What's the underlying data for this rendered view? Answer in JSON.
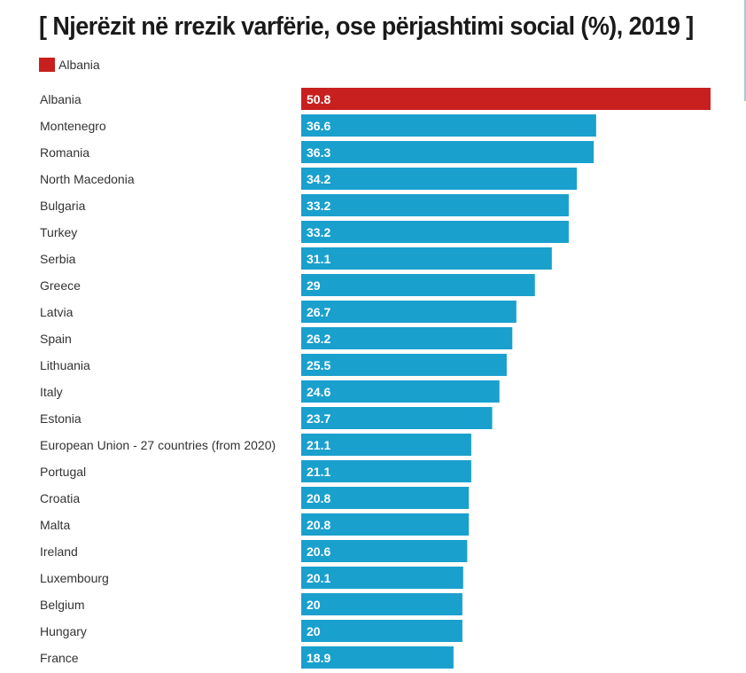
{
  "chart_data": {
    "type": "bar",
    "orientation": "horizontal",
    "title": "[ Njerëzit në rrezik varfërie, ose përjashtimi social (%), 2019 ]",
    "xlabel": "",
    "ylabel": "",
    "xlim": [
      0,
      50.8
    ],
    "grid": false,
    "legend": {
      "placement": "top-left",
      "entries": [
        {
          "label": "Albania",
          "color": "#c8201f"
        }
      ]
    },
    "highlight_color": "#c8201f",
    "default_color": "#1aa0cd",
    "categories": [
      "Albania",
      "Montenegro",
      "Romania",
      "North Macedonia",
      "Bulgaria",
      "Turkey",
      "Serbia",
      "Greece",
      "Latvia",
      "Spain",
      "Lithuania",
      "Italy",
      "Estonia",
      "European Union - 27 countries (from 2020)",
      "Portugal",
      "Croatia",
      "Malta",
      "Ireland",
      "Luxembourg",
      "Belgium",
      "Hungary",
      "France"
    ],
    "values": [
      50.8,
      36.6,
      36.3,
      34.2,
      33.2,
      33.2,
      31.1,
      29,
      26.7,
      26.2,
      25.5,
      24.6,
      23.7,
      21.1,
      21.1,
      20.8,
      20.8,
      20.6,
      20.1,
      20,
      20,
      18.9
    ],
    "value_labels": [
      "50.8",
      "36.6",
      "36.3",
      "34.2",
      "33.2",
      "33.2",
      "31.1",
      "29",
      "26.7",
      "26.2",
      "25.5",
      "24.6",
      "23.7",
      "21.1",
      "21.1",
      "20.8",
      "20.8",
      "20.6",
      "20.1",
      "20",
      "20",
      "18.9"
    ],
    "highlighted": [
      "Albania"
    ]
  }
}
